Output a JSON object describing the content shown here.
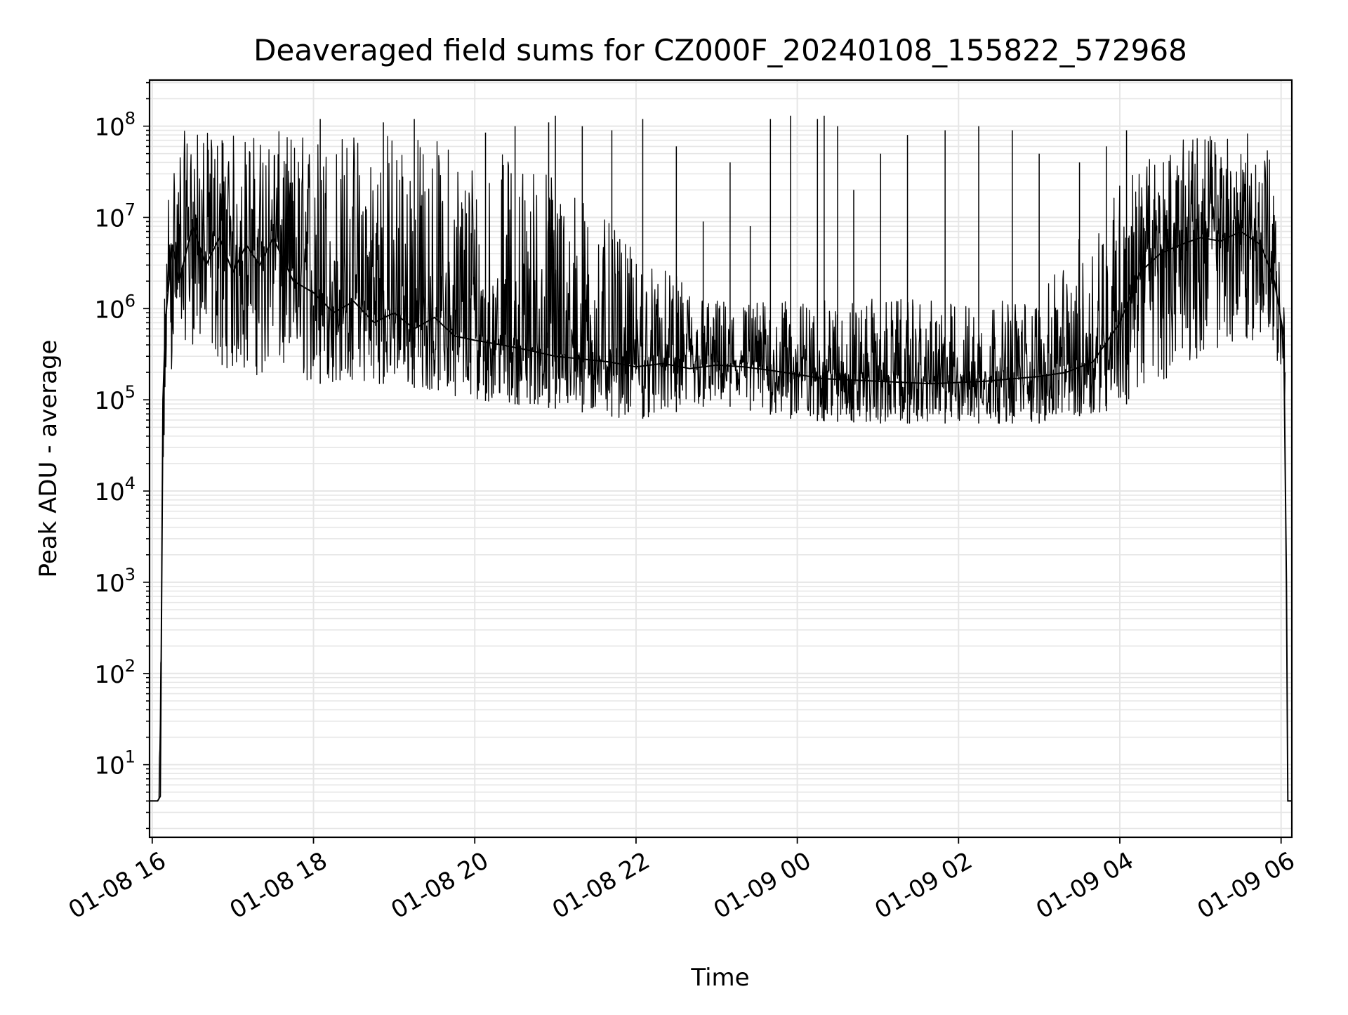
{
  "chart_data": {
    "type": "line",
    "title": "Deaveraged field sums for CZ000F_20240108_155822_572968",
    "xlabel": "Time",
    "ylabel": "Peak ADU - average",
    "y_scale": "log",
    "x_range": [
      "2024-01-08 15:58",
      "2024-01-09 06:08"
    ],
    "ylim": [
      1.6,
      320000000
    ],
    "grid": true,
    "grid_minor": true,
    "line_color": "#000000",
    "grid_color": "#e6e6e6",
    "x_ticks": [
      {
        "t": "2024-01-08 16:00",
        "label": "01-08 16"
      },
      {
        "t": "2024-01-08 18:00",
        "label": "01-08 18"
      },
      {
        "t": "2024-01-08 20:00",
        "label": "01-08 20"
      },
      {
        "t": "2024-01-08 22:00",
        "label": "01-08 22"
      },
      {
        "t": "2024-01-09 00:00",
        "label": "01-09 00"
      },
      {
        "t": "2024-01-09 02:00",
        "label": "01-09 02"
      },
      {
        "t": "2024-01-09 04:00",
        "label": "01-09 04"
      },
      {
        "t": "2024-01-09 06:00",
        "label": "01-09 06"
      }
    ],
    "y_ticks": [
      {
        "value": 10,
        "base": "10",
        "exp": "1"
      },
      {
        "value": 100,
        "base": "10",
        "exp": "2"
      },
      {
        "value": 1000,
        "base": "10",
        "exp": "3"
      },
      {
        "value": 10000,
        "base": "10",
        "exp": "4"
      },
      {
        "value": 100000,
        "base": "10",
        "exp": "5"
      },
      {
        "value": 1000000,
        "base": "10",
        "exp": "6"
      },
      {
        "value": 10000000,
        "base": "10",
        "exp": "7"
      },
      {
        "value": 100000000,
        "base": "10",
        "exp": "8"
      }
    ],
    "series": [
      {
        "points": [
          [
            "2024-01-08 15:58",
            4
          ],
          [
            "2024-01-08 16:04",
            4
          ],
          [
            "2024-01-08 16:06",
            4.5
          ],
          [
            "2024-01-08 16:08",
            100000
          ],
          [
            "2024-01-08 16:10",
            800000
          ],
          [
            "2024-01-08 16:15",
            5000000
          ],
          [
            "2024-01-08 16:20",
            2000000
          ],
          [
            "2024-01-08 16:30",
            8000000
          ],
          [
            "2024-01-08 16:40",
            3000000
          ],
          [
            "2024-01-08 16:50",
            6000000
          ],
          [
            "2024-01-08 17:00",
            2500000
          ],
          [
            "2024-01-08 17:10",
            5000000
          ],
          [
            "2024-01-08 17:20",
            3000000
          ],
          [
            "2024-01-08 17:30",
            6000000
          ],
          [
            "2024-01-08 17:45",
            2000000
          ],
          [
            "2024-01-08 18:00",
            1500000
          ],
          [
            "2024-01-08 18:15",
            900000
          ],
          [
            "2024-01-08 18:30",
            1200000
          ],
          [
            "2024-01-08 18:45",
            700000
          ],
          [
            "2024-01-08 19:00",
            900000
          ],
          [
            "2024-01-08 19:15",
            600000
          ],
          [
            "2024-01-08 19:30",
            800000
          ],
          [
            "2024-01-08 19:45",
            500000
          ],
          [
            "2024-01-08 20:00",
            450000
          ],
          [
            "2024-01-08 20:20",
            400000
          ],
          [
            "2024-01-08 20:40",
            350000
          ],
          [
            "2024-01-08 21:00",
            300000
          ],
          [
            "2024-01-08 21:20",
            280000
          ],
          [
            "2024-01-08 21:40",
            260000
          ],
          [
            "2024-01-08 22:00",
            230000
          ],
          [
            "2024-01-08 22:20",
            250000
          ],
          [
            "2024-01-08 22:40",
            220000
          ],
          [
            "2024-01-08 23:00",
            240000
          ],
          [
            "2024-01-08 23:20",
            230000
          ],
          [
            "2024-01-08 23:40",
            210000
          ],
          [
            "2024-01-09 00:00",
            190000
          ],
          [
            "2024-01-09 00:20",
            170000
          ],
          [
            "2024-01-09 00:40",
            165000
          ],
          [
            "2024-01-09 01:00",
            160000
          ],
          [
            "2024-01-09 01:20",
            155000
          ],
          [
            "2024-01-09 01:40",
            150000
          ],
          [
            "2024-01-09 02:00",
            155000
          ],
          [
            "2024-01-09 02:20",
            160000
          ],
          [
            "2024-01-09 02:40",
            170000
          ],
          [
            "2024-01-09 03:00",
            180000
          ],
          [
            "2024-01-09 03:20",
            200000
          ],
          [
            "2024-01-09 03:40",
            260000
          ],
          [
            "2024-01-09 04:00",
            700000
          ],
          [
            "2024-01-09 04:15",
            2500000
          ],
          [
            "2024-01-09 04:30",
            4000000
          ],
          [
            "2024-01-09 04:45",
            5000000
          ],
          [
            "2024-01-09 05:00",
            6000000
          ],
          [
            "2024-01-09 05:15",
            5500000
          ],
          [
            "2024-01-09 05:30",
            7000000
          ],
          [
            "2024-01-09 05:45",
            5000000
          ],
          [
            "2024-01-09 05:55",
            2000000
          ],
          [
            "2024-01-09 06:02",
            500000
          ],
          [
            "2024-01-09 06:04",
            1000
          ],
          [
            "2024-01-09 06:05",
            4
          ],
          [
            "2024-01-09 06:08",
            4
          ]
        ],
        "upper_envelope": [
          [
            "2024-01-08 16:05",
            4.5
          ],
          [
            "2024-01-08 16:10",
            20000000
          ],
          [
            "2024-01-08 16:20",
            90000000
          ],
          [
            "2024-01-08 17:00",
            85000000
          ],
          [
            "2024-01-08 18:00",
            90000000
          ],
          [
            "2024-01-08 19:00",
            100000000
          ],
          [
            "2024-01-08 20:00",
            60000000
          ],
          [
            "2024-01-08 21:00",
            40000000
          ],
          [
            "2024-01-08 22:00",
            4000000
          ],
          [
            "2024-01-08 23:00",
            1300000
          ],
          [
            "2024-01-09 00:00",
            1200000
          ],
          [
            "2024-01-09 01:00",
            1300000
          ],
          [
            "2024-01-09 02:00",
            1200000
          ],
          [
            "2024-01-09 03:00",
            1300000
          ],
          [
            "2024-01-09 04:00",
            30000000
          ],
          [
            "2024-01-09 05:00",
            90000000
          ],
          [
            "2024-01-09 05:50",
            80000000
          ],
          [
            "2024-01-09 06:03",
            800000
          ]
        ],
        "lower_envelope": [
          [
            "2024-01-08 16:05",
            4
          ],
          [
            "2024-01-08 16:10",
            100000
          ],
          [
            "2024-01-08 16:20",
            500000
          ],
          [
            "2024-01-08 17:00",
            200000
          ],
          [
            "2024-01-08 18:00",
            150000
          ],
          [
            "2024-01-08 19:00",
            150000
          ],
          [
            "2024-01-08 20:00",
            100000
          ],
          [
            "2024-01-08 21:00",
            80000
          ],
          [
            "2024-01-08 22:00",
            60000
          ],
          [
            "2024-01-08 23:00",
            90000
          ],
          [
            "2024-01-09 00:00",
            60000
          ],
          [
            "2024-01-09 01:00",
            55000
          ],
          [
            "2024-01-09 02:00",
            55000
          ],
          [
            "2024-01-09 03:00",
            55000
          ],
          [
            "2024-01-09 04:00",
            80000
          ],
          [
            "2024-01-09 05:00",
            300000
          ],
          [
            "2024-01-09 05:50",
            500000
          ],
          [
            "2024-01-09 06:03",
            100000
          ]
        ],
        "spikes": [
          [
            "2024-01-08 16:52",
            70000000
          ],
          [
            "2024-01-08 18:05",
            120000000
          ],
          [
            "2024-01-08 18:52",
            110000000
          ],
          [
            "2024-01-08 19:15",
            120000000
          ],
          [
            "2024-01-08 20:08",
            85000000
          ],
          [
            "2024-01-08 20:30",
            100000000
          ],
          [
            "2024-01-08 20:55",
            110000000
          ],
          [
            "2024-01-08 21:00",
            130000000
          ],
          [
            "2024-01-08 21:20",
            100000000
          ],
          [
            "2024-01-08 21:42",
            90000000
          ],
          [
            "2024-01-08 22:05",
            120000000
          ],
          [
            "2024-01-08 22:30",
            60000000
          ],
          [
            "2024-01-08 22:50",
            9000000
          ],
          [
            "2024-01-08 23:10",
            40000000
          ],
          [
            "2024-01-08 23:25",
            8000000
          ],
          [
            "2024-01-08 23:40",
            120000000
          ],
          [
            "2024-01-08 23:55",
            130000000
          ],
          [
            "2024-01-09 00:15",
            120000000
          ],
          [
            "2024-01-09 00:20",
            130000000
          ],
          [
            "2024-01-09 00:30",
            100000000
          ],
          [
            "2024-01-09 00:42",
            20000000
          ],
          [
            "2024-01-09 01:02",
            50000000
          ],
          [
            "2024-01-09 01:22",
            80000000
          ],
          [
            "2024-01-09 01:50",
            90000000
          ],
          [
            "2024-01-09 02:15",
            100000000
          ],
          [
            "2024-01-09 02:40",
            90000000
          ],
          [
            "2024-01-09 03:00",
            50000000
          ],
          [
            "2024-01-09 03:30",
            40000000
          ],
          [
            "2024-01-09 03:50",
            60000000
          ],
          [
            "2024-01-09 04:05",
            90000000
          ]
        ]
      }
    ]
  }
}
